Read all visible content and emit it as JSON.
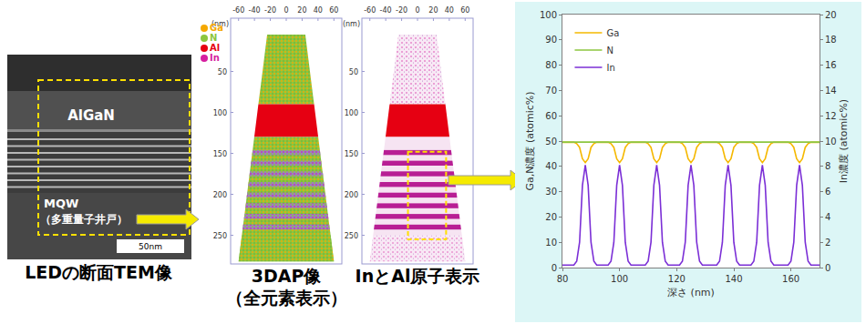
{
  "tem": {
    "caption": "LEDの断面TEM像",
    "layers": [
      "AlGaN",
      "MQW",
      "（多重量子井戸）"
    ],
    "scale_bar": "50nm"
  },
  "apt_panels": [
    {
      "caption": [
        "3DAP像",
        "（全元素表示）"
      ],
      "unit": "(nm)",
      "xlim": [
        -70,
        70
      ],
      "ylim": [
        -15,
        285
      ],
      "xticks": [
        -60,
        -40,
        -20,
        0,
        20,
        40,
        60
      ],
      "yticks": [
        50,
        100,
        150,
        200,
        250
      ],
      "elements": [
        {
          "name": "Ga",
          "color": "#f5a800"
        },
        {
          "name": "N",
          "color": "#8cc63f"
        },
        {
          "name": "Al",
          "color": "#e60012"
        },
        {
          "name": "In",
          "color": "#d61fa0"
        }
      ]
    },
    {
      "caption": [
        "InとAl原子表示"
      ],
      "unit": "(nm)",
      "xlim": [
        -70,
        70
      ],
      "ylim": [
        -15,
        285
      ],
      "xticks": [
        -60,
        -40,
        -20,
        0,
        20,
        40,
        60
      ],
      "yticks": [
        50,
        100,
        150,
        200,
        250
      ]
    }
  ],
  "chart_data": {
    "type": "line",
    "x_label": "深さ (nm)",
    "y_label": "Ga,N濃度 (atomic%)",
    "y2_label": "In濃度 (atomic%)",
    "x": [
      80,
      81,
      82,
      83,
      84,
      85,
      86,
      87,
      88,
      89,
      90,
      91,
      92,
      93,
      94,
      95,
      96,
      97,
      98,
      99,
      100,
      101,
      102,
      103,
      104,
      105,
      106,
      107,
      108,
      109,
      110,
      111,
      112,
      113,
      114,
      115,
      116,
      117,
      118,
      119,
      120,
      121,
      122,
      123,
      124,
      125,
      126,
      127,
      128,
      129,
      130,
      131,
      132,
      133,
      134,
      135,
      136,
      137,
      138,
      139,
      140,
      141,
      142,
      143,
      144,
      145,
      146,
      147,
      148,
      149,
      150,
      151,
      152,
      153,
      154,
      155,
      156,
      157,
      158,
      159,
      160,
      161,
      162,
      163,
      164,
      165,
      166,
      167,
      168,
      169,
      170
    ],
    "xlim": [
      80,
      170
    ],
    "xticks": [
      80,
      100,
      120,
      140,
      160
    ],
    "ylim": [
      0,
      100
    ],
    "yticks": [
      0,
      10,
      20,
      30,
      40,
      50,
      60,
      70,
      80,
      90,
      100
    ],
    "y2lim": [
      0,
      20
    ],
    "y2ticks": [
      0,
      2,
      4,
      6,
      8,
      10,
      12,
      14,
      16,
      18,
      20
    ],
    "grid": false,
    "legend": "upper left",
    "series": [
      {
        "name": "Ga",
        "color": "#f5b800",
        "values": [
          49.5,
          49.5,
          49.5,
          49.5,
          49.5,
          49.0,
          47.5,
          43.0,
          41.5,
          43.0,
          47.5,
          49.0,
          49.5,
          49.5,
          49.5,
          49.5,
          49.5,
          49.0,
          47.5,
          43.0,
          41.5,
          43.0,
          47.5,
          49.0,
          49.5,
          49.5,
          49.5,
          49.5,
          49.5,
          49.5,
          49.0,
          47.5,
          43.0,
          41.5,
          43.0,
          47.5,
          49.0,
          49.5,
          49.5,
          49.5,
          49.5,
          49.5,
          49.0,
          47.5,
          43.0,
          41.5,
          43.0,
          47.5,
          49.0,
          49.5,
          49.5,
          49.5,
          49.5,
          49.5,
          49.5,
          49.0,
          47.5,
          43.0,
          41.5,
          43.0,
          47.5,
          49.0,
          49.5,
          49.5,
          49.5,
          49.5,
          49.5,
          49.0,
          47.5,
          43.0,
          41.5,
          43.0,
          47.5,
          49.0,
          49.5,
          49.5,
          49.5,
          49.5,
          49.5,
          49.5,
          49.0,
          47.5,
          43.0,
          41.5,
          43.0,
          47.5,
          49.0,
          49.5,
          49.5,
          49.5,
          49.5
        ]
      },
      {
        "name": "N",
        "color": "#8cc63f",
        "values": [
          49.6,
          49.6,
          49.6,
          49.6,
          49.6,
          49.6,
          49.6,
          49.6,
          49.6,
          49.6,
          49.6,
          49.6,
          49.6,
          49.6,
          49.6,
          49.6,
          49.6,
          49.6,
          49.6,
          49.6,
          49.6,
          49.6,
          49.6,
          49.6,
          49.6,
          49.6,
          49.6,
          49.6,
          49.6,
          49.6,
          49.6,
          49.6,
          49.6,
          49.6,
          49.6,
          49.6,
          49.6,
          49.6,
          49.6,
          49.6,
          49.6,
          49.6,
          49.6,
          49.6,
          49.6,
          49.6,
          49.6,
          49.6,
          49.6,
          49.6,
          49.6,
          49.6,
          49.6,
          49.6,
          49.6,
          49.6,
          49.6,
          49.6,
          49.6,
          49.6,
          49.6,
          49.6,
          49.6,
          49.6,
          49.6,
          49.6,
          49.6,
          49.6,
          49.6,
          49.6,
          49.6,
          49.6,
          49.6,
          49.6,
          49.6,
          49.6,
          49.6,
          49.6,
          49.6,
          49.6,
          49.6,
          49.6,
          49.6,
          49.6,
          49.6,
          49.6,
          49.6,
          49.6,
          49.6,
          49.6,
          49.6
        ]
      },
      {
        "name": "In",
        "color": "#7b2fd6",
        "axis": "y2",
        "values": [
          0.2,
          0.2,
          0.2,
          0.2,
          0.2,
          0.5,
          2.0,
          6.5,
          8.1,
          6.5,
          2.0,
          0.5,
          0.2,
          0.2,
          0.2,
          0.2,
          0.2,
          0.5,
          2.0,
          6.5,
          8.1,
          6.5,
          2.0,
          0.5,
          0.2,
          0.2,
          0.2,
          0.2,
          0.2,
          0.2,
          0.5,
          2.0,
          6.5,
          8.1,
          6.5,
          2.0,
          0.5,
          0.2,
          0.2,
          0.2,
          0.2,
          0.2,
          0.5,
          2.0,
          6.5,
          8.1,
          6.5,
          2.0,
          0.5,
          0.2,
          0.2,
          0.2,
          0.2,
          0.2,
          0.2,
          0.5,
          2.0,
          6.5,
          8.1,
          6.5,
          2.0,
          0.5,
          0.2,
          0.2,
          0.2,
          0.2,
          0.2,
          0.5,
          2.0,
          6.5,
          8.1,
          6.5,
          2.0,
          0.5,
          0.2,
          0.2,
          0.2,
          0.2,
          0.2,
          0.2,
          0.5,
          2.0,
          6.5,
          8.1,
          6.5,
          2.0,
          0.5,
          0.2,
          0.2,
          0.2,
          0.2
        ]
      }
    ]
  }
}
